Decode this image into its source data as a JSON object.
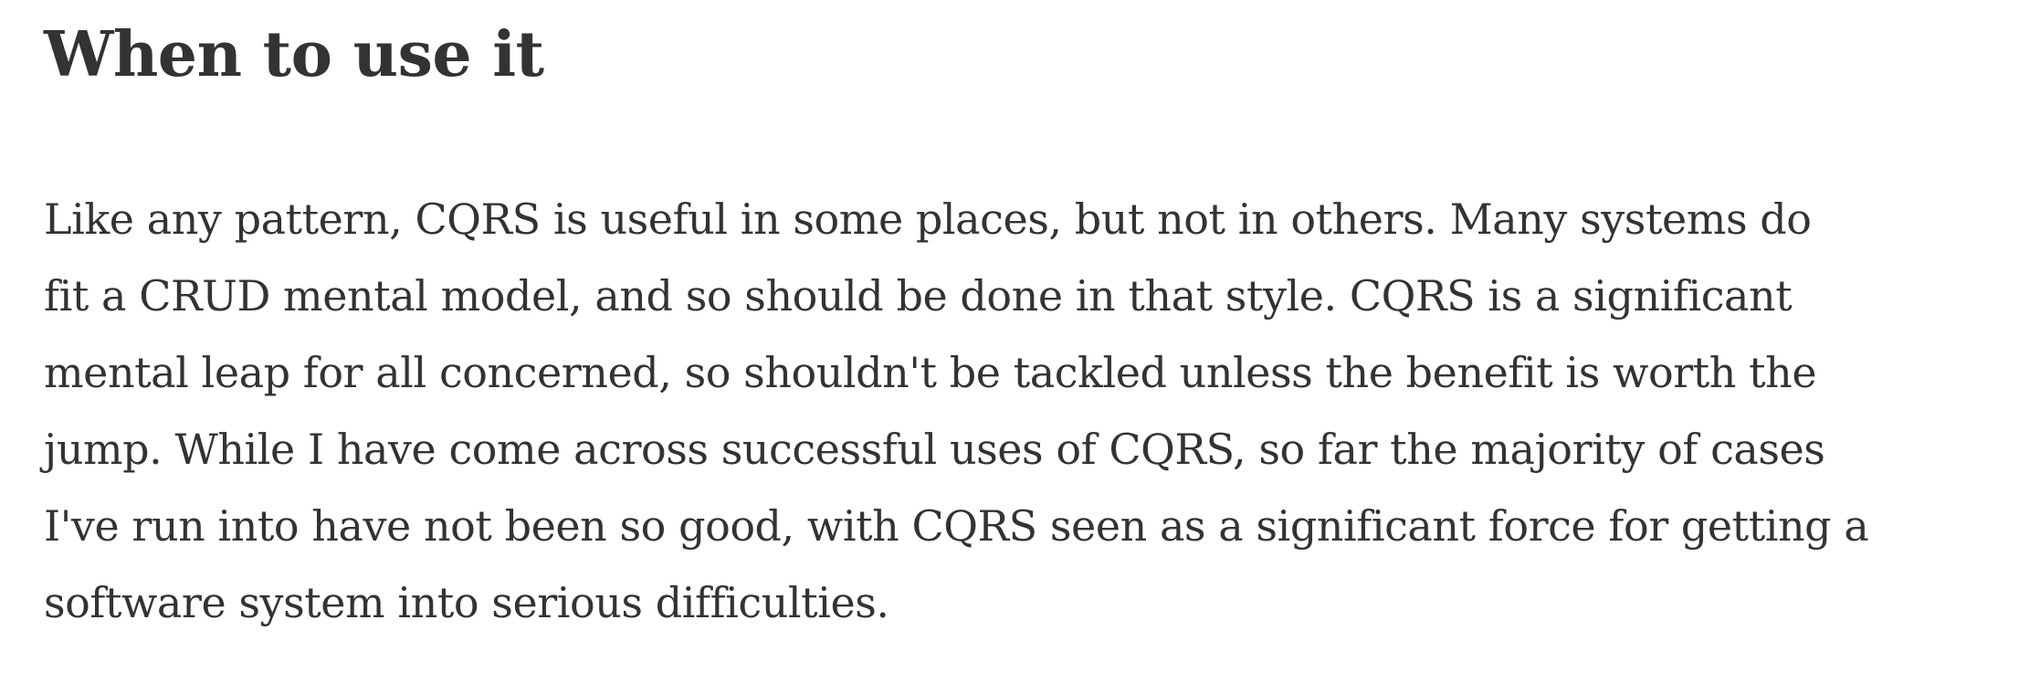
{
  "section": {
    "heading": "When to use it",
    "paragraph_lines": [
      "Like any pattern, CQRS is useful in some places, but not in others. Many systems do",
      "fit a CRUD mental model, and so should be done in that style. CQRS is a significant",
      "mental leap for all concerned, so shouldn't be tackled unless the benefit is worth the",
      "jump. While I have come across successful uses of CQRS, so far the majority of cases",
      "I've run into have not been so good, with CQRS seen as a significant force for getting a",
      "software system into serious difficulties."
    ]
  }
}
